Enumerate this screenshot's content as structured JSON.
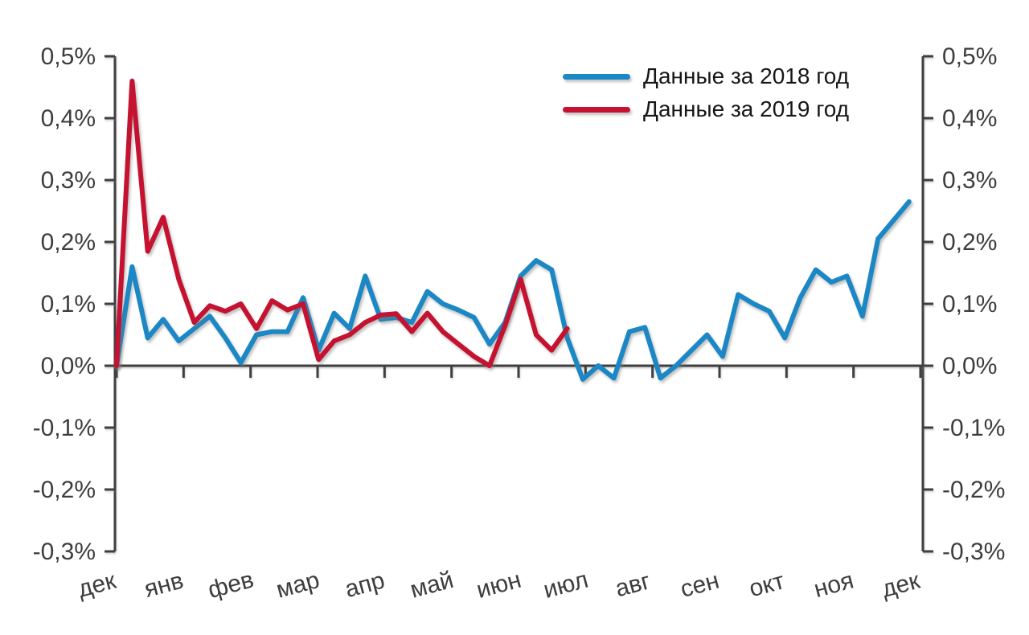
{
  "chart_data": {
    "type": "line",
    "title": "",
    "x_axis": {
      "tick_labels": [
        "дек",
        "янв",
        "фев",
        "мар",
        "апр",
        "май",
        "июн",
        "июл",
        "авг",
        "сен",
        "окт",
        "ноя",
        "дек"
      ]
    },
    "y_axis": {
      "unit": "%",
      "ylim": [
        -0.3,
        0.5
      ],
      "tick_values": [
        0.5,
        0.4,
        0.3,
        0.2,
        0.1,
        0.0,
        -0.1,
        -0.2,
        -0.3
      ],
      "tick_labels_left": [
        "0,5%",
        "0,4%",
        "0,3%",
        "0,2%",
        "0,1%",
        "0,0%",
        "-0,1%",
        "-0,2%",
        "-0,3%"
      ],
      "tick_labels_right": [
        "0,5%",
        "0,4%",
        "0,3%",
        "0,2%",
        "0,1%",
        "0,0%",
        "-0,1%",
        "-0,2%",
        "-0,3%"
      ]
    },
    "grid": false,
    "legend_position": "top-right",
    "series": [
      {
        "name": "Данные за 2018 год",
        "color": "#1B87C5",
        "frequency": "weekly",
        "values": [
          0.0,
          0.16,
          0.045,
          0.075,
          0.04,
          0.06,
          0.08,
          0.045,
          0.005,
          0.05,
          0.055,
          0.055,
          0.11,
          0.025,
          0.085,
          0.06,
          0.145,
          0.075,
          0.078,
          0.07,
          0.12,
          0.1,
          0.09,
          0.078,
          0.035,
          0.07,
          0.145,
          0.17,
          0.155,
          0.045,
          -0.022,
          0.0,
          -0.02,
          0.055,
          0.062,
          -0.02,
          0.0,
          0.025,
          0.05,
          0.015,
          0.115,
          0.1,
          0.088,
          0.045,
          0.11,
          0.155,
          0.135,
          0.145,
          0.08,
          0.205,
          0.235,
          0.265
        ]
      },
      {
        "name": "Данные за 2019 год",
        "color": "#C51230",
        "frequency": "weekly",
        "values": [
          0.0,
          0.46,
          0.185,
          0.24,
          0.14,
          0.07,
          0.097,
          0.088,
          0.1,
          0.06,
          0.105,
          0.09,
          0.1,
          0.01,
          0.04,
          0.05,
          0.07,
          0.082,
          0.084,
          0.055,
          0.085,
          0.055,
          0.035,
          0.015,
          0.0,
          0.065,
          0.14,
          0.05,
          0.025,
          0.06
        ]
      }
    ]
  }
}
